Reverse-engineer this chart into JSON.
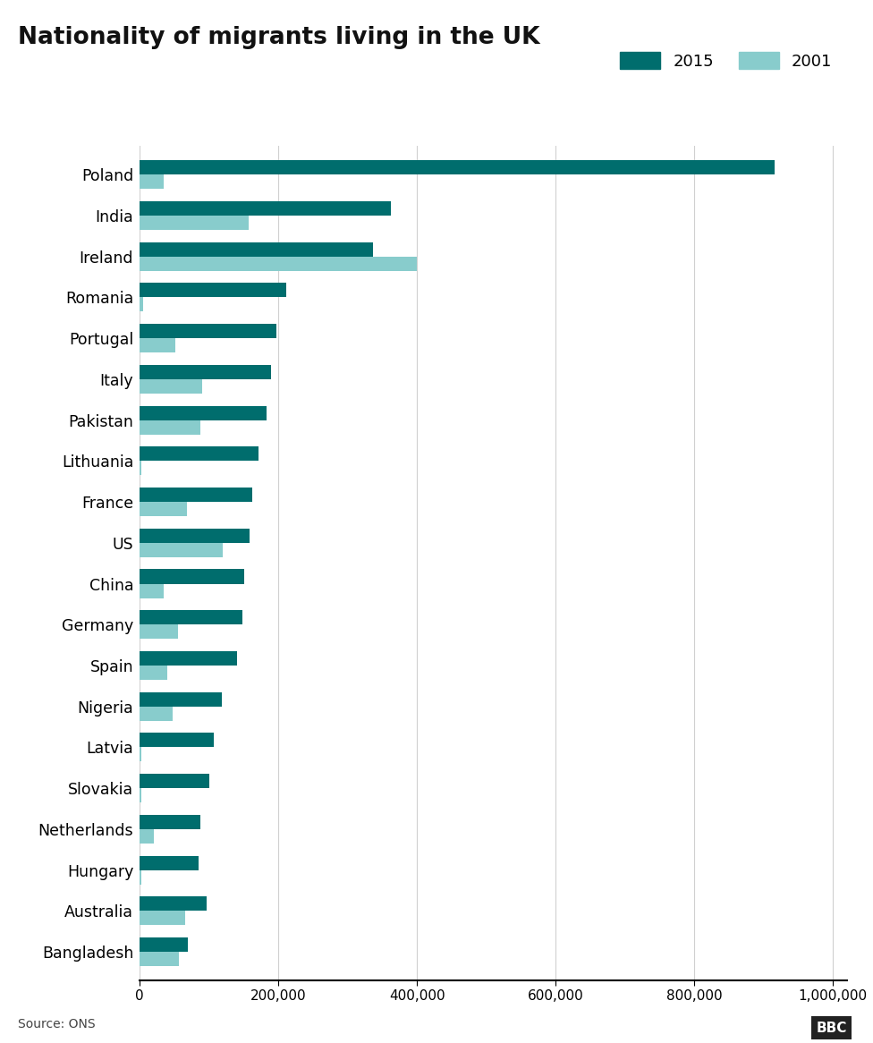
{
  "title": "Nationality of migrants living in the UK",
  "categories": [
    "Poland",
    "India",
    "Ireland",
    "Romania",
    "Portugal",
    "Italy",
    "Pakistan",
    "Lithuania",
    "France",
    "US",
    "China",
    "Germany",
    "Spain",
    "Nigeria",
    "Latvia",
    "Slovakia",
    "Netherlands",
    "Hungary",
    "Australia",
    "Bangladesh"
  ],
  "values_2015": [
    916000,
    362000,
    336000,
    212000,
    197000,
    189000,
    183000,
    171000,
    163000,
    159000,
    151000,
    148000,
    140000,
    119000,
    107000,
    100000,
    88000,
    85000,
    97000,
    70000
  ],
  "values_2001": [
    35000,
    157000,
    400000,
    5000,
    52000,
    90000,
    87000,
    2000,
    68000,
    120000,
    35000,
    55000,
    40000,
    47000,
    3000,
    3000,
    20000,
    2000,
    65000,
    57000
  ],
  "color_2015": "#006d6d",
  "color_2001": "#88cccc",
  "background_color": "#ffffff",
  "xlabel_vals": [
    0,
    200000,
    400000,
    600000,
    800000,
    1000000
  ],
  "xlabel_labels": [
    "0",
    "200,000",
    "400,000",
    "600,000",
    "800,000",
    "1,000,000"
  ],
  "source_text": "Source: ONS",
  "xlim": [
    0,
    1020000
  ]
}
